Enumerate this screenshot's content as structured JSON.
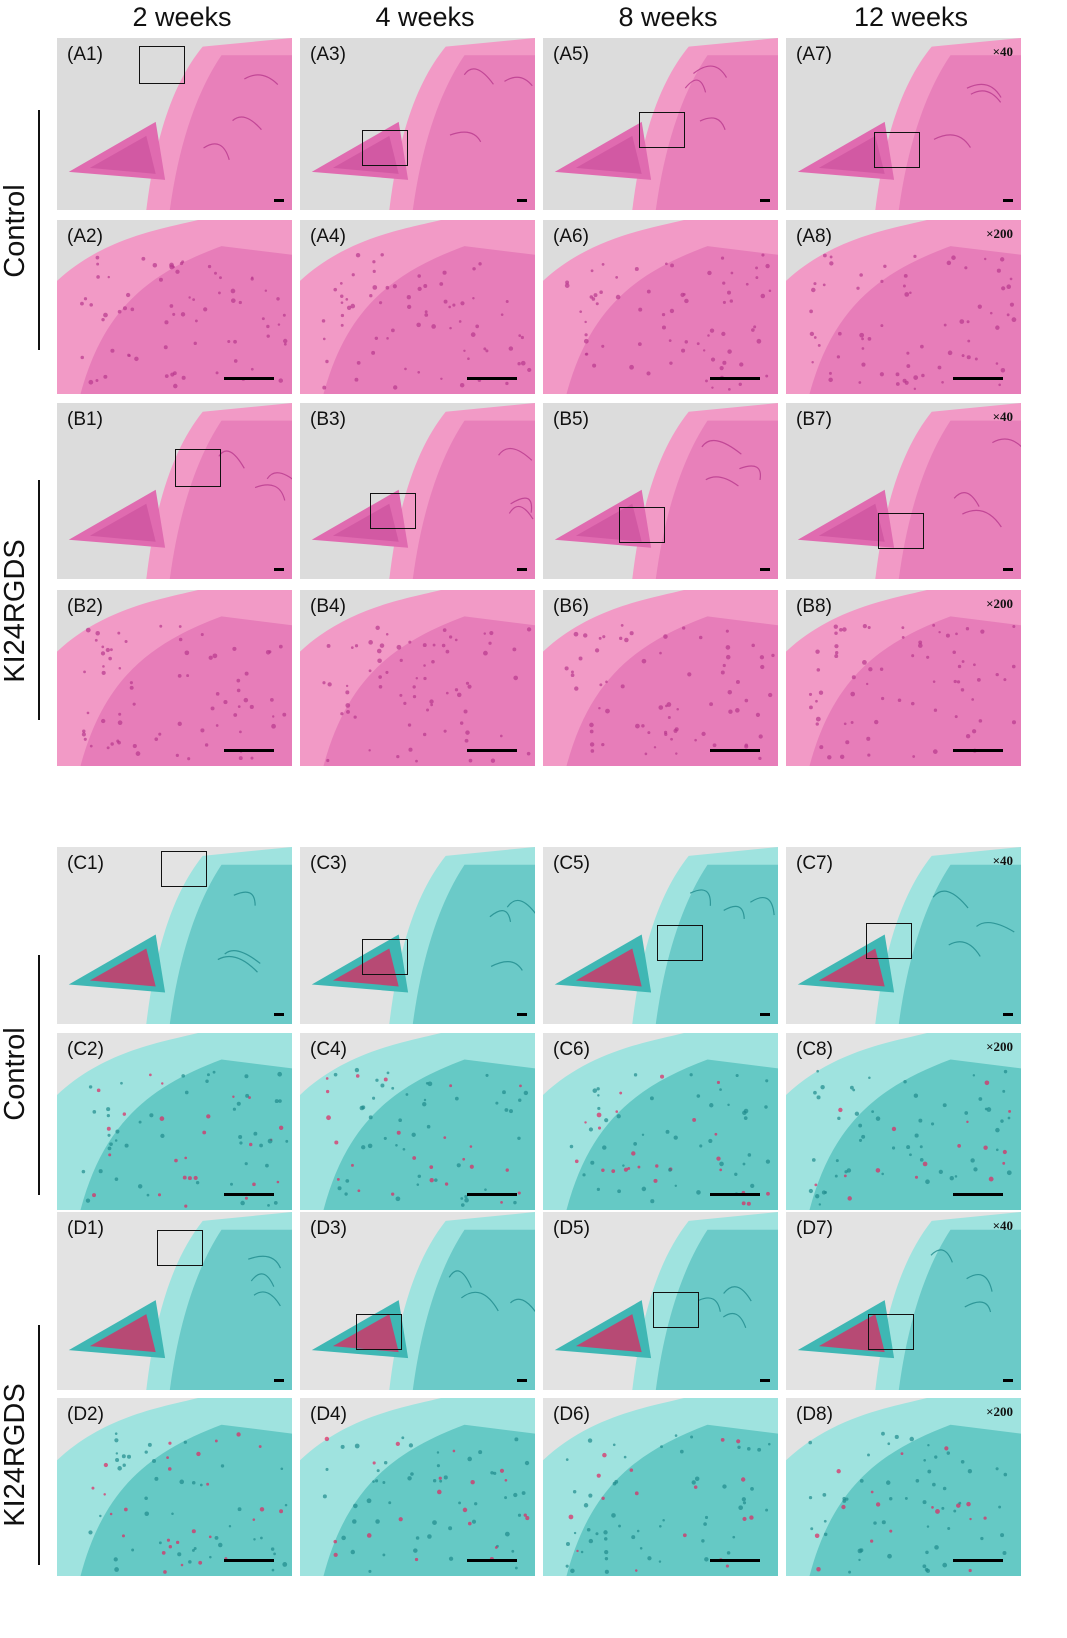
{
  "column_headers": [
    "2 weeks",
    "4 weeks",
    "8 weeks",
    "12 weeks"
  ],
  "row_group_labels": {
    "he_control": "Control",
    "he_treated": "KI24RGDS",
    "sof_control": "Control",
    "sof_treated": "KI24RGDS"
  },
  "magnifications": {
    "low": "×40",
    "high": "×200"
  },
  "stain_colors": {
    "he_background": "#dcdcdc",
    "he_tissue_light": "#f29ac6",
    "he_tissue": "#e06bb0",
    "he_tissue_dark": "#b8388d",
    "sof_background": "#e3e3e3",
    "sof_tissue_light": "#9fe3df",
    "sof_tissue": "#3fb7b4",
    "sof_tissue_dark": "#1f8a8c",
    "sof_cartilage_red": "#e0255f"
  },
  "panels": {
    "A1": "(A1)",
    "A2": "(A2)",
    "A3": "(A3)",
    "A4": "(A4)",
    "A5": "(A5)",
    "A6": "(A6)",
    "A7": "(A7)",
    "A8": "(A8)",
    "B1": "(B1)",
    "B2": "(B2)",
    "B3": "(B3)",
    "B4": "(B4)",
    "B5": "(B5)",
    "B6": "(B6)",
    "B7": "(B7)",
    "B8": "(B8)",
    "C1": "(C1)",
    "C2": "(C2)",
    "C3": "(C3)",
    "C4": "(C4)",
    "C5": "(C5)",
    "C6": "(C6)",
    "C7": "(C7)",
    "C8": "(C8)",
    "D1": "(D1)",
    "D2": "(D2)",
    "D3": "(D3)",
    "D4": "(D4)",
    "D5": "(D5)",
    "D6": "(D6)",
    "D7": "(D7)",
    "D8": "(D8)"
  }
}
